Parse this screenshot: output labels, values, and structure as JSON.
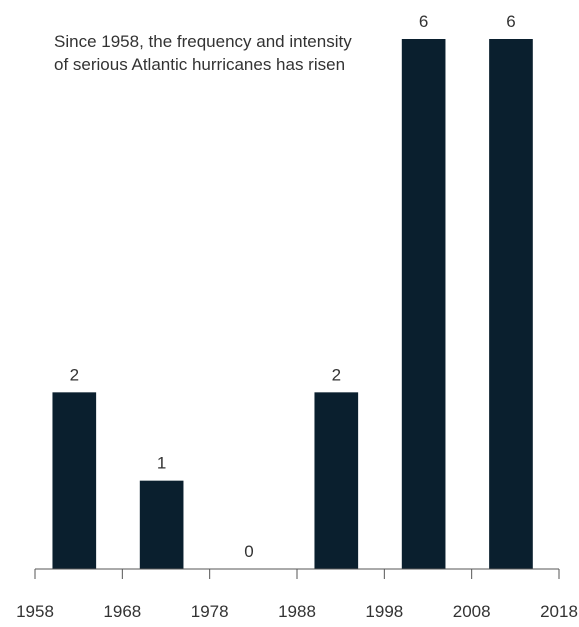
{
  "chart_data": {
    "type": "bar",
    "annotation": "Since 1958, the frequency and intensity of serious Atlantic hurricanes has risen",
    "x_ticks": [
      "1958",
      "1968",
      "1978",
      "1988",
      "1998",
      "2008",
      "2018"
    ],
    "x_range": [
      1958,
      2018
    ],
    "ylim": [
      0,
      6
    ],
    "bars": [
      {
        "start": 1960,
        "end": 1965,
        "value": 2,
        "label": "2"
      },
      {
        "start": 1970,
        "end": 1975,
        "value": 1,
        "label": "1"
      },
      {
        "start": 1980,
        "end": 1985,
        "value": 0,
        "label": "0"
      },
      {
        "start": 1990,
        "end": 1995,
        "value": 2,
        "label": "2"
      },
      {
        "start": 2000,
        "end": 2005,
        "value": 6,
        "label": "6"
      },
      {
        "start": 2010,
        "end": 2015,
        "value": 6,
        "label": "6"
      }
    ],
    "grid": false,
    "bar_color": "#0a1f2e",
    "axis_color": "#555555",
    "text_color": "#333333"
  }
}
